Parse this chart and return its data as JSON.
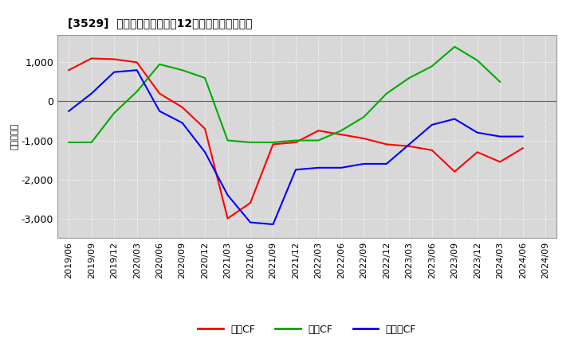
{
  "title": "[3529]  キャッシュフローの12か月移動合計の推移",
  "ylabel": "（百万円）",
  "ylim": [
    -3500,
    1700
  ],
  "yticks": [
    -3000,
    -2000,
    -1000,
    0,
    1000
  ],
  "background_color": "#ffffff",
  "plot_background_color": "#d8d8d8",
  "grid_color": "#ffffff",
  "x_labels": [
    "2019/06",
    "2019/09",
    "2019/12",
    "2020/03",
    "2020/06",
    "2020/09",
    "2020/12",
    "2021/03",
    "2021/06",
    "2021/09",
    "2021/12",
    "2022/03",
    "2022/06",
    "2022/09",
    "2022/12",
    "2023/03",
    "2023/06",
    "2023/09",
    "2023/12",
    "2024/03",
    "2024/06",
    "2024/09"
  ],
  "series": [
    {
      "name": "営業CF",
      "color": "#ff0000",
      "values": [
        800,
        1100,
        1080,
        1000,
        200,
        -150,
        -700,
        -3000,
        -2600,
        -1100,
        -1050,
        -750,
        -850,
        -950,
        -1100,
        -1150,
        -1250,
        -1800,
        -1300,
        -1550,
        -1200,
        null
      ]
    },
    {
      "name": "投資CF",
      "color": "#00aa00",
      "values": [
        -1050,
        -1050,
        -300,
        250,
        950,
        800,
        600,
        -1000,
        -1050,
        -1050,
        -1000,
        -1000,
        -750,
        -400,
        200,
        600,
        900,
        1400,
        1050,
        500,
        null,
        null
      ]
    },
    {
      "name": "フリーCF",
      "color": "#0000ff",
      "values": [
        -250,
        200,
        750,
        800,
        -250,
        -550,
        -1300,
        -2400,
        -3100,
        -3150,
        -1750,
        -1700,
        -1700,
        -1600,
        -1600,
        -1100,
        -600,
        -450,
        -800,
        -900,
        -900,
        null
      ]
    }
  ],
  "legend_entries": [
    "営業CF",
    "投資CF",
    "フリーCF"
  ],
  "legend_colors": [
    "#ff0000",
    "#00aa00",
    "#0000ff"
  ]
}
